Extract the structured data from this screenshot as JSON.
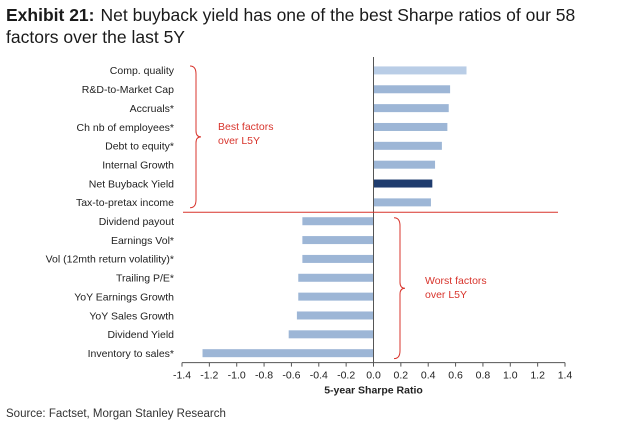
{
  "header": {
    "exhibit_label": "Exhibit 21:",
    "title": "Net buyback yield has one of the best Sharpe ratios of our 58 factors over the last 5Y"
  },
  "footer": {
    "source": "Source: Factset, Morgan Stanley Research"
  },
  "colors": {
    "bar": "#9db6d6",
    "bar_top": "#b9cde6",
    "bar_highlight": "#1f3c6e",
    "annotation": "#d8342c",
    "axis": "#555555"
  },
  "chart_data": {
    "type": "bar",
    "orientation": "horizontal",
    "title": "",
    "xlabel": "5-year Sharpe Ratio",
    "ylabel": "",
    "xlim": [
      -1.4,
      1.4
    ],
    "xticks": [
      "-1.4",
      "-1.2",
      "-1.0",
      "-0.8",
      "-0.6",
      "-0.4",
      "-0.2",
      "0.0",
      "0.2",
      "0.4",
      "0.6",
      "0.8",
      "1.0",
      "1.2",
      "1.4"
    ],
    "xtick_values": [
      -1.4,
      -1.2,
      -1.0,
      -0.8,
      -0.6,
      -0.4,
      -0.2,
      0.0,
      0.2,
      0.4,
      0.6,
      0.8,
      1.0,
      1.2,
      1.4
    ],
    "grid": false,
    "categories": [
      "Comp. quality",
      "R&D-to-Market Cap",
      "Accruals*",
      "Ch nb of employees*",
      "Debt to equity*",
      "Internal Growth",
      "Net Buyback Yield",
      "Tax-to-pretax income",
      "Dividend payout",
      "Earnings Vol*",
      "Vol (12mth return volatility)*",
      "Trailing P/E*",
      "YoY Earnings Growth",
      "YoY Sales Growth",
      "Dividend Yield",
      "Inventory to sales*"
    ],
    "values": [
      0.68,
      0.56,
      0.55,
      0.54,
      0.5,
      0.45,
      0.43,
      0.42,
      -0.52,
      -0.52,
      -0.52,
      -0.55,
      -0.55,
      -0.56,
      -0.62,
      -1.25
    ],
    "highlight": "Net Buyback Yield",
    "annotations": [
      {
        "text": "Best factors\nover L5Y"
      },
      {
        "text": "Worst factors\nover L5Y"
      }
    ]
  }
}
